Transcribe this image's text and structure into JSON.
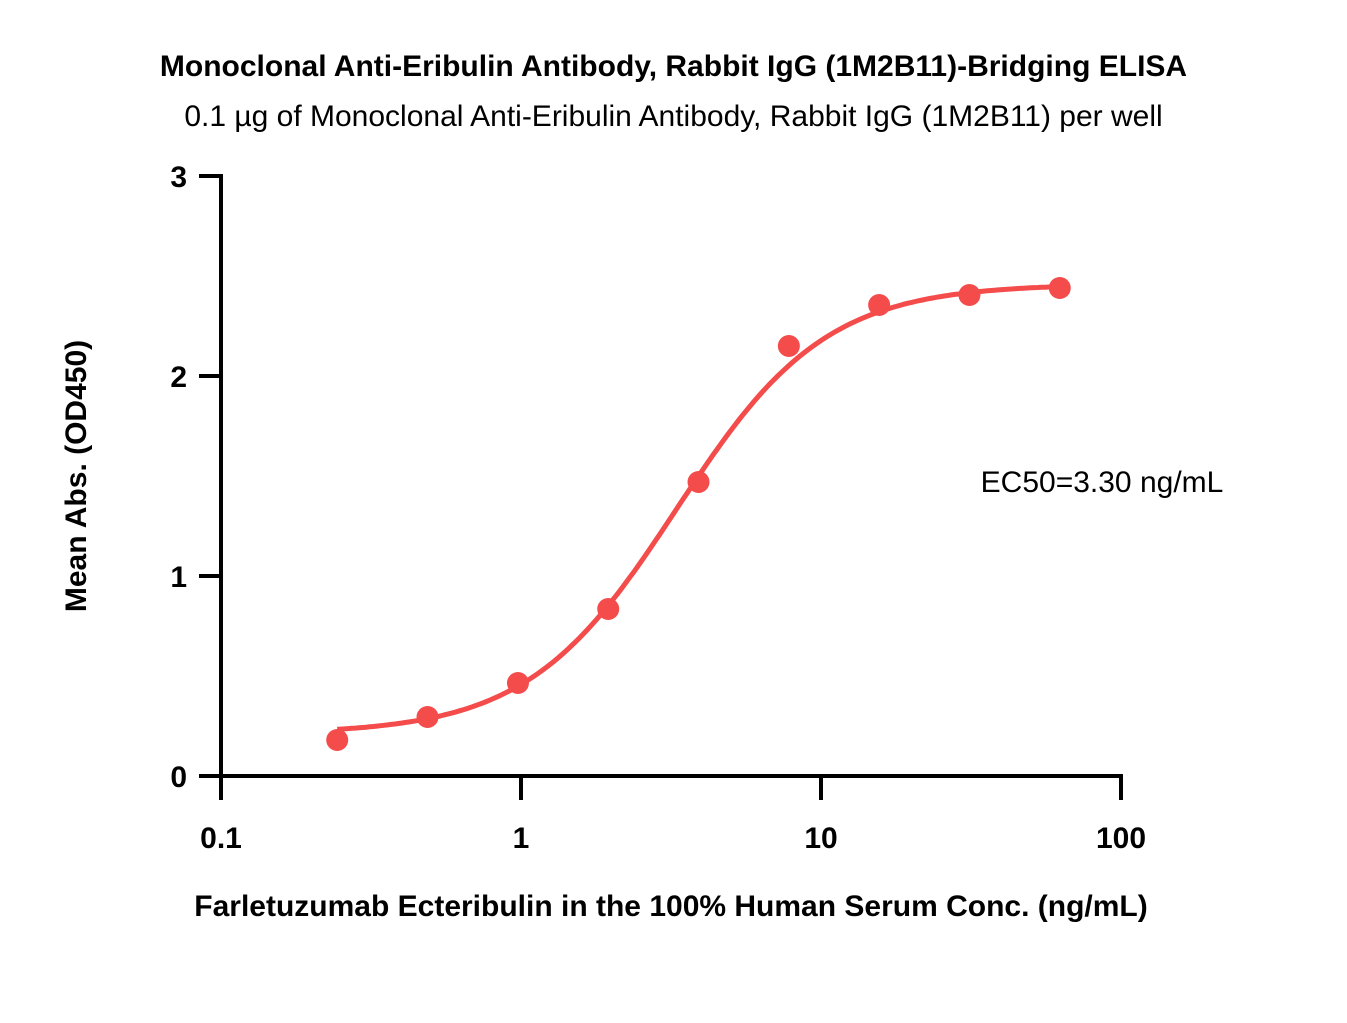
{
  "chart_data": {
    "type": "scatter",
    "title": "Monoclonal Anti-Eribulin Antibody, Rabbit IgG (1M2B11)-Bridging ELISA",
    "subtitle": "0.1 µg of Monoclonal Anti-Eribulin Antibody, Rabbit IgG (1M2B11) per well",
    "xlabel": "Farletuzumab Ecteribulin in the 100% Human Serum Conc. (ng/mL)",
    "ylabel": "Mean Abs. (OD450)",
    "xscale": "log",
    "xlim": [
      0.1,
      100
    ],
    "ylim": [
      0,
      3
    ],
    "xticks": [
      0.1,
      1,
      10,
      100
    ],
    "xtick_labels": [
      "0.1",
      "1",
      "10",
      "100"
    ],
    "yticks": [
      0,
      1,
      2,
      3
    ],
    "ytick_labels": [
      "0",
      "1",
      "2",
      "3"
    ],
    "grid": false,
    "annotation": "EC50=3.30 ng/mL",
    "series": [
      {
        "name": "Farletuzumab Ecteribulin",
        "color": "#f44b4b",
        "x": [
          0.244,
          0.488,
          0.977,
          1.953,
          3.906,
          7.813,
          15.625,
          31.25,
          62.5
        ],
        "y": [
          0.18,
          0.295,
          0.465,
          0.835,
          1.47,
          2.15,
          2.355,
          2.405,
          2.44
        ]
      }
    ],
    "fit": {
      "model": "4PL",
      "bottom": 0.21,
      "top": 2.46,
      "ec50": 3.3,
      "hill": 1.75
    }
  }
}
